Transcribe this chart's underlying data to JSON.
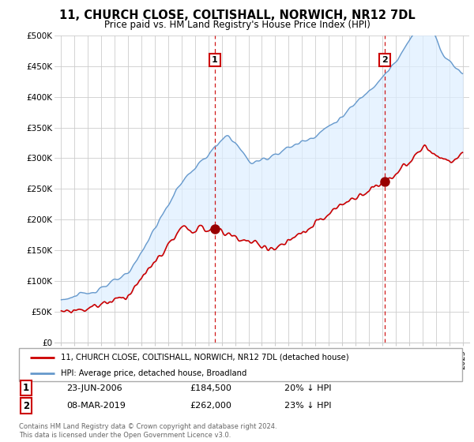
{
  "title": "11, CHURCH CLOSE, COLTISHALL, NORWICH, NR12 7DL",
  "subtitle": "Price paid vs. HM Land Registry's House Price Index (HPI)",
  "ylim": [
    0,
    500000
  ],
  "yticks": [
    0,
    50000,
    100000,
    150000,
    200000,
    250000,
    300000,
    350000,
    400000,
    450000,
    500000
  ],
  "ytick_labels": [
    "£0",
    "£50K",
    "£100K",
    "£150K",
    "£200K",
    "£250K",
    "£300K",
    "£350K",
    "£400K",
    "£450K",
    "£500K"
  ],
  "xlim_start": 1994.5,
  "xlim_end": 2025.5,
  "sale1": {
    "date": "23-JUN-2006",
    "price": 184500,
    "pct": "20%",
    "label": "1",
    "year": 2006.47
  },
  "sale2": {
    "date": "08-MAR-2019",
    "price": 262000,
    "pct": "23%",
    "label": "2",
    "year": 2019.18
  },
  "legend_line1": "11, CHURCH CLOSE, COLTISHALL, NORWICH, NR12 7DL (detached house)",
  "legend_line2": "HPI: Average price, detached house, Broadland",
  "footer": "Contains HM Land Registry data © Crown copyright and database right 2024.\nThis data is licensed under the Open Government Licence v3.0.",
  "sale_color": "#cc0000",
  "hpi_color": "#6699cc",
  "fill_color": "#ddeeff",
  "vline_color": "#cc0000",
  "background_color": "#ffffff",
  "grid_color": "#cccccc",
  "label_box_color": "#cc0000"
}
